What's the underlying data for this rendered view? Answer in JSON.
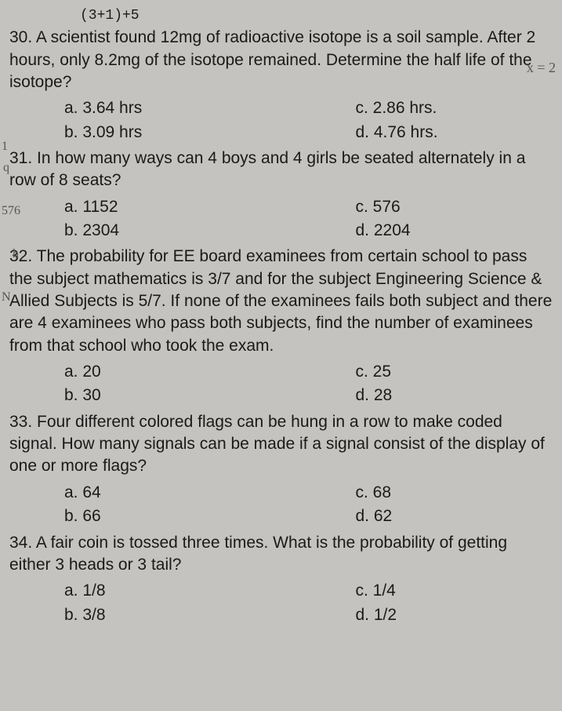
{
  "partial_top": "(3+1)+5",
  "annotation_right": "x = 2",
  "margin_notes": {
    "n1": "1",
    "n2": "q",
    "n3": "576",
    "n4": "h",
    "n5": "N"
  },
  "questions": [
    {
      "number": "30.",
      "text": "A scientist found 12mg of radioactive isotope is a soil sample. After 2 hours, only 8.2mg of the isotope remained. Determine the half life of the isotope?",
      "options": {
        "a": "a. 3.64 hrs",
        "b": "b. 3.09 hrs",
        "c": "c. 2.86 hrs.",
        "d": "d. 4.76 hrs."
      }
    },
    {
      "number": "31.",
      "text": "In how many ways can 4 boys and 4 girls be seated alternately in a row of 8 seats?",
      "options": {
        "a": "a. 1152",
        "b": "b. 2304",
        "c": "c. 576",
        "d": "d. 2204"
      }
    },
    {
      "number": "32.",
      "text": "The probability for EE board examinees from certain school to pass the subject mathematics is 3/7 and for the subject Engineering Science & Allied Subjects is 5/7. If none of the examinees fails both subject and there are 4 examinees who pass both subjects, find the number of examinees from that school who took the exam.",
      "options": {
        "a": "a. 20",
        "b": "b. 30",
        "c": "c. 25",
        "d": "d. 28"
      }
    },
    {
      "number": "33.",
      "text": "Four different colored flags can be hung in a row to make coded signal. How many signals can be made if a signal consist of the display of one or more flags?",
      "options": {
        "a": "a. 64",
        "b": "b. 66",
        "c": "c. 68",
        "d": "d. 62"
      }
    },
    {
      "number": "34.",
      "text": "A fair coin is tossed three times. What is the probability of getting either 3 heads or 3 tail?",
      "options": {
        "a": "a. 1/8",
        "b": "b. 3/8",
        "c": "c. 1/4",
        "d": "d. 1/2"
      }
    }
  ]
}
